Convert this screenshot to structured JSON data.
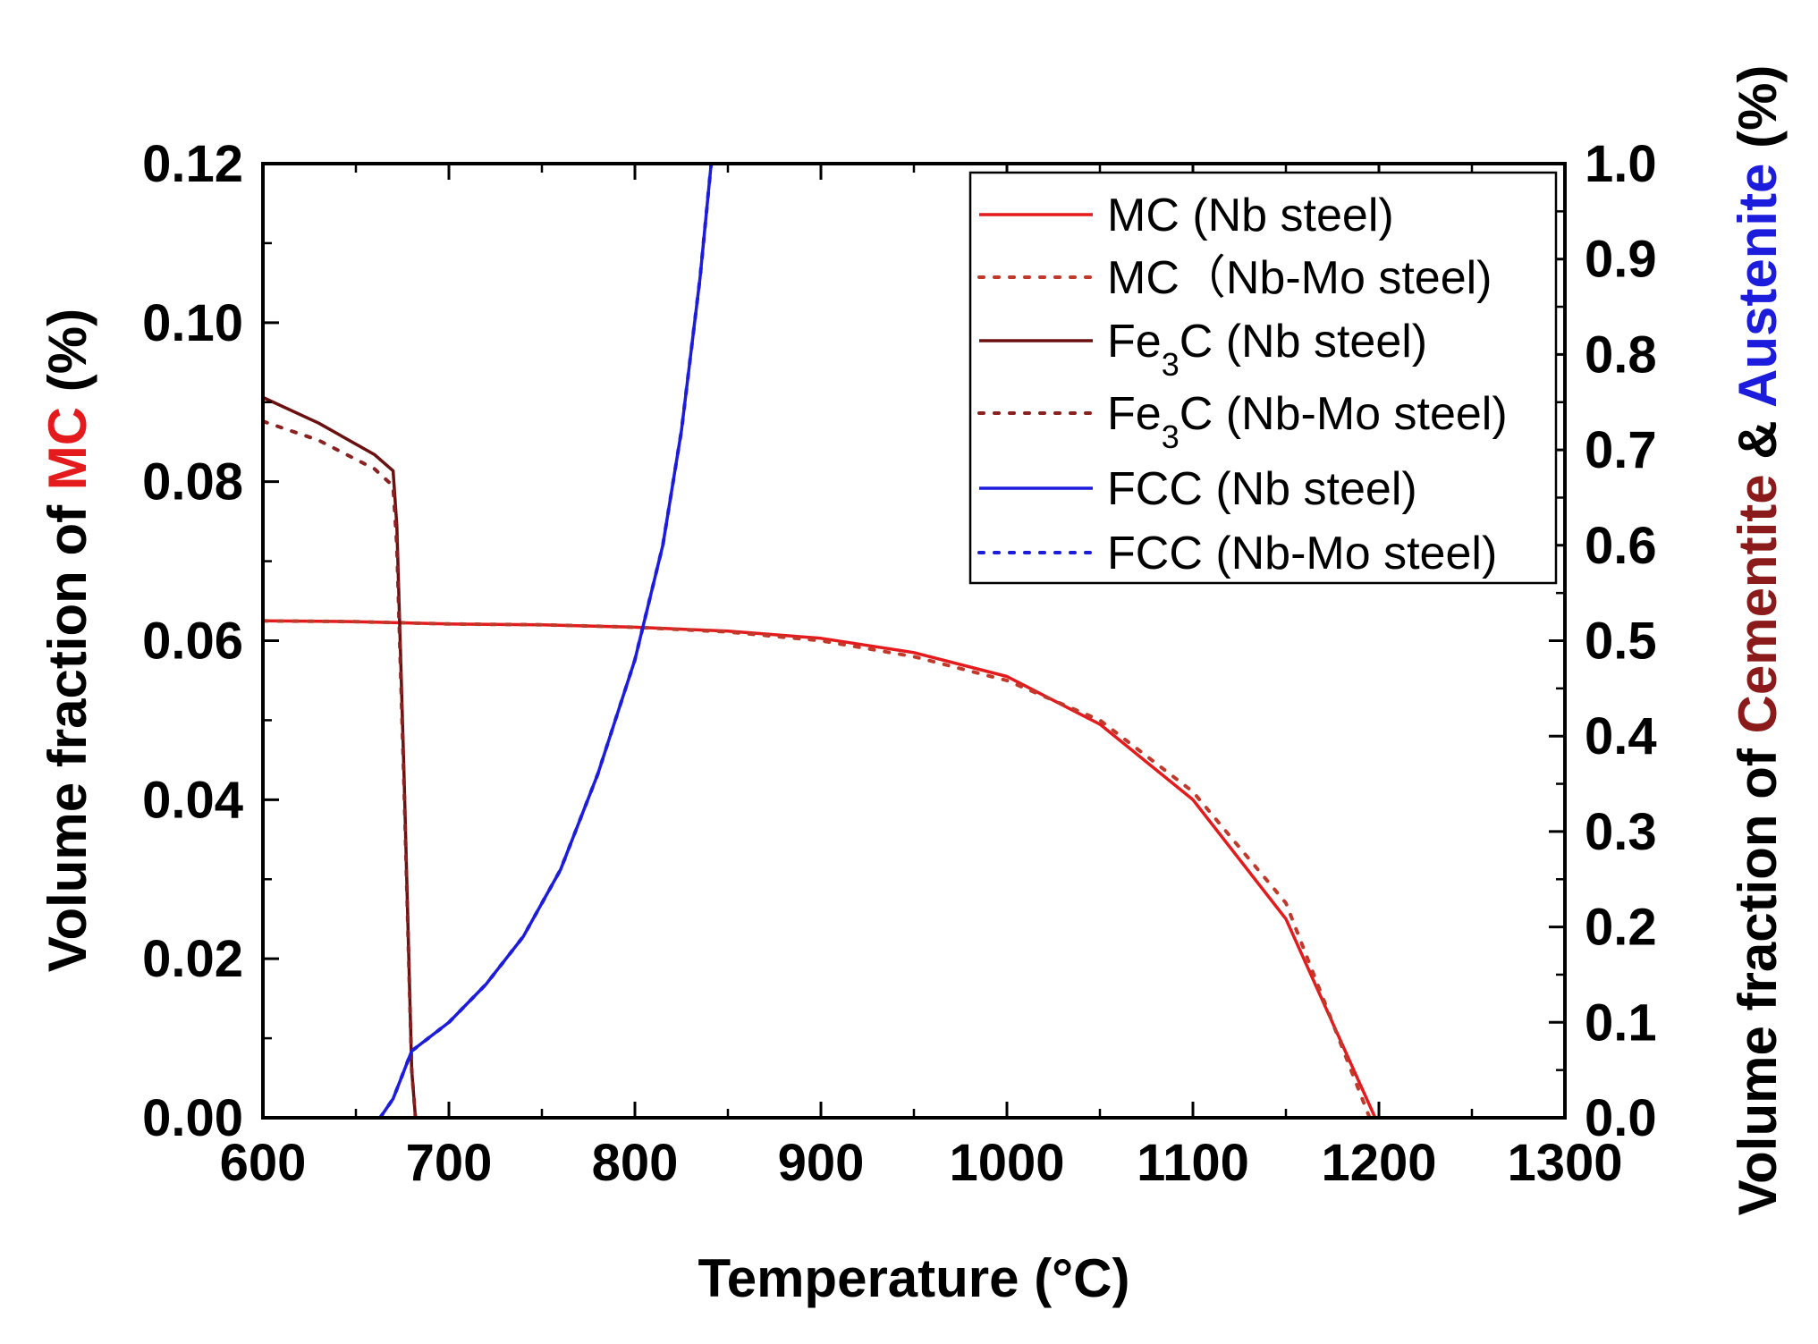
{
  "chart_data": {
    "type": "line",
    "xlabel": "Temperature (°C)",
    "xlim": [
      600,
      1300
    ],
    "x_ticks": [
      "600",
      "700",
      "800",
      "900",
      "1000",
      "1100",
      "1200",
      "1300"
    ],
    "left_axis": {
      "label_parts": [
        "Volume fraction of ",
        "MC",
        " (%)"
      ],
      "label_colors": [
        "#000000",
        "#e41a1c",
        "#000000"
      ],
      "ylim": [
        0,
        0.12
      ],
      "ticks": [
        "0.00",
        "0.02",
        "0.04",
        "0.06",
        "0.08",
        "0.10",
        "0.12"
      ]
    },
    "right_axis": {
      "label_parts": [
        "Volume fraction of ",
        "Cementite",
        " & ",
        "Austenite",
        " (%)"
      ],
      "label_colors": [
        "#000000",
        "#8b1a1a",
        "#000000",
        "#1c1cdc",
        "#000000"
      ],
      "ylim": [
        0,
        1.0
      ],
      "ticks": [
        "0.0",
        "0.1",
        "0.2",
        "0.3",
        "0.4",
        "0.5",
        "0.6",
        "0.7",
        "0.8",
        "0.9",
        "1.0"
      ]
    },
    "legend": {
      "position": "top-right",
      "entries": [
        {
          "label": "MC (Nb steel)",
          "color": "#e41a1c",
          "style": "solid"
        },
        {
          "label": "MC（Nb-Mo steel)",
          "color": "#c0392b",
          "style": "dotted"
        },
        {
          "label_parts": [
            "Fe",
            "3",
            "C (Nb steel)"
          ],
          "color": "#6b1010",
          "style": "solid"
        },
        {
          "label_parts": [
            "Fe",
            "3",
            "C (Nb-Mo steel)"
          ],
          "color": "#8b2020",
          "style": "dotted"
        },
        {
          "label": "FCC (Nb steel)",
          "color": "#1c1cdc",
          "style": "solid"
        },
        {
          "label": "FCC (Nb-Mo steel)",
          "color": "#1c1cdc",
          "style": "dotted"
        }
      ]
    },
    "series": [
      {
        "name": "MC (Nb steel)",
        "axis": "left",
        "color": "#e41a1c",
        "style": "solid",
        "x": [
          600,
          650,
          700,
          750,
          800,
          850,
          900,
          950,
          1000,
          1050,
          1100,
          1150,
          1198
        ],
        "y": [
          0.0625,
          0.0624,
          0.0621,
          0.062,
          0.0617,
          0.0612,
          0.0603,
          0.0585,
          0.0555,
          0.0495,
          0.04,
          0.025,
          0.0
        ]
      },
      {
        "name": "MC (Nb-Mo steel)",
        "axis": "left",
        "color": "#c0392b",
        "style": "dotted",
        "x": [
          600,
          650,
          700,
          750,
          800,
          850,
          900,
          950,
          1000,
          1050,
          1100,
          1150,
          1195
        ],
        "y": [
          0.0625,
          0.0624,
          0.0621,
          0.062,
          0.0617,
          0.0611,
          0.06,
          0.058,
          0.055,
          0.05,
          0.041,
          0.027,
          0.0
        ]
      },
      {
        "name": "Fe3C (Nb steel)",
        "axis": "right",
        "color": "#6b1010",
        "style": "solid",
        "x": [
          600,
          630,
          660,
          670,
          672,
          676,
          680,
          682
        ],
        "y": [
          0.755,
          0.728,
          0.695,
          0.678,
          0.62,
          0.35,
          0.05,
          0.0
        ]
      },
      {
        "name": "Fe3C (Nb-Mo steel)",
        "axis": "right",
        "color": "#8b2020",
        "style": "dotted",
        "x": [
          600,
          630,
          660,
          670,
          672,
          676,
          680,
          682
        ],
        "y": [
          0.73,
          0.71,
          0.68,
          0.662,
          0.6,
          0.34,
          0.05,
          0.0
        ]
      },
      {
        "name": "FCC (Nb steel)",
        "axis": "right",
        "color": "#1c1cdc",
        "style": "solid",
        "x": [
          663,
          670,
          676,
          680,
          700,
          720,
          740,
          760,
          780,
          800,
          815,
          825,
          835,
          841,
          900,
          970
        ],
        "y": [
          0.0,
          0.02,
          0.05,
          0.07,
          0.1,
          0.14,
          0.19,
          0.26,
          0.36,
          0.48,
          0.6,
          0.72,
          0.88,
          1.0,
          1.0,
          1.0
        ]
      },
      {
        "name": "FCC (Nb-Mo steel)",
        "axis": "right",
        "color": "#1c1cdc",
        "style": "dotted",
        "x": [
          663,
          670,
          676,
          680,
          700,
          720,
          740,
          760,
          780,
          800,
          815,
          825,
          835,
          841,
          900,
          970
        ],
        "y": [
          0.0,
          0.02,
          0.05,
          0.07,
          0.1,
          0.14,
          0.19,
          0.26,
          0.36,
          0.48,
          0.6,
          0.72,
          0.88,
          1.0,
          1.0,
          1.0
        ]
      }
    ]
  }
}
